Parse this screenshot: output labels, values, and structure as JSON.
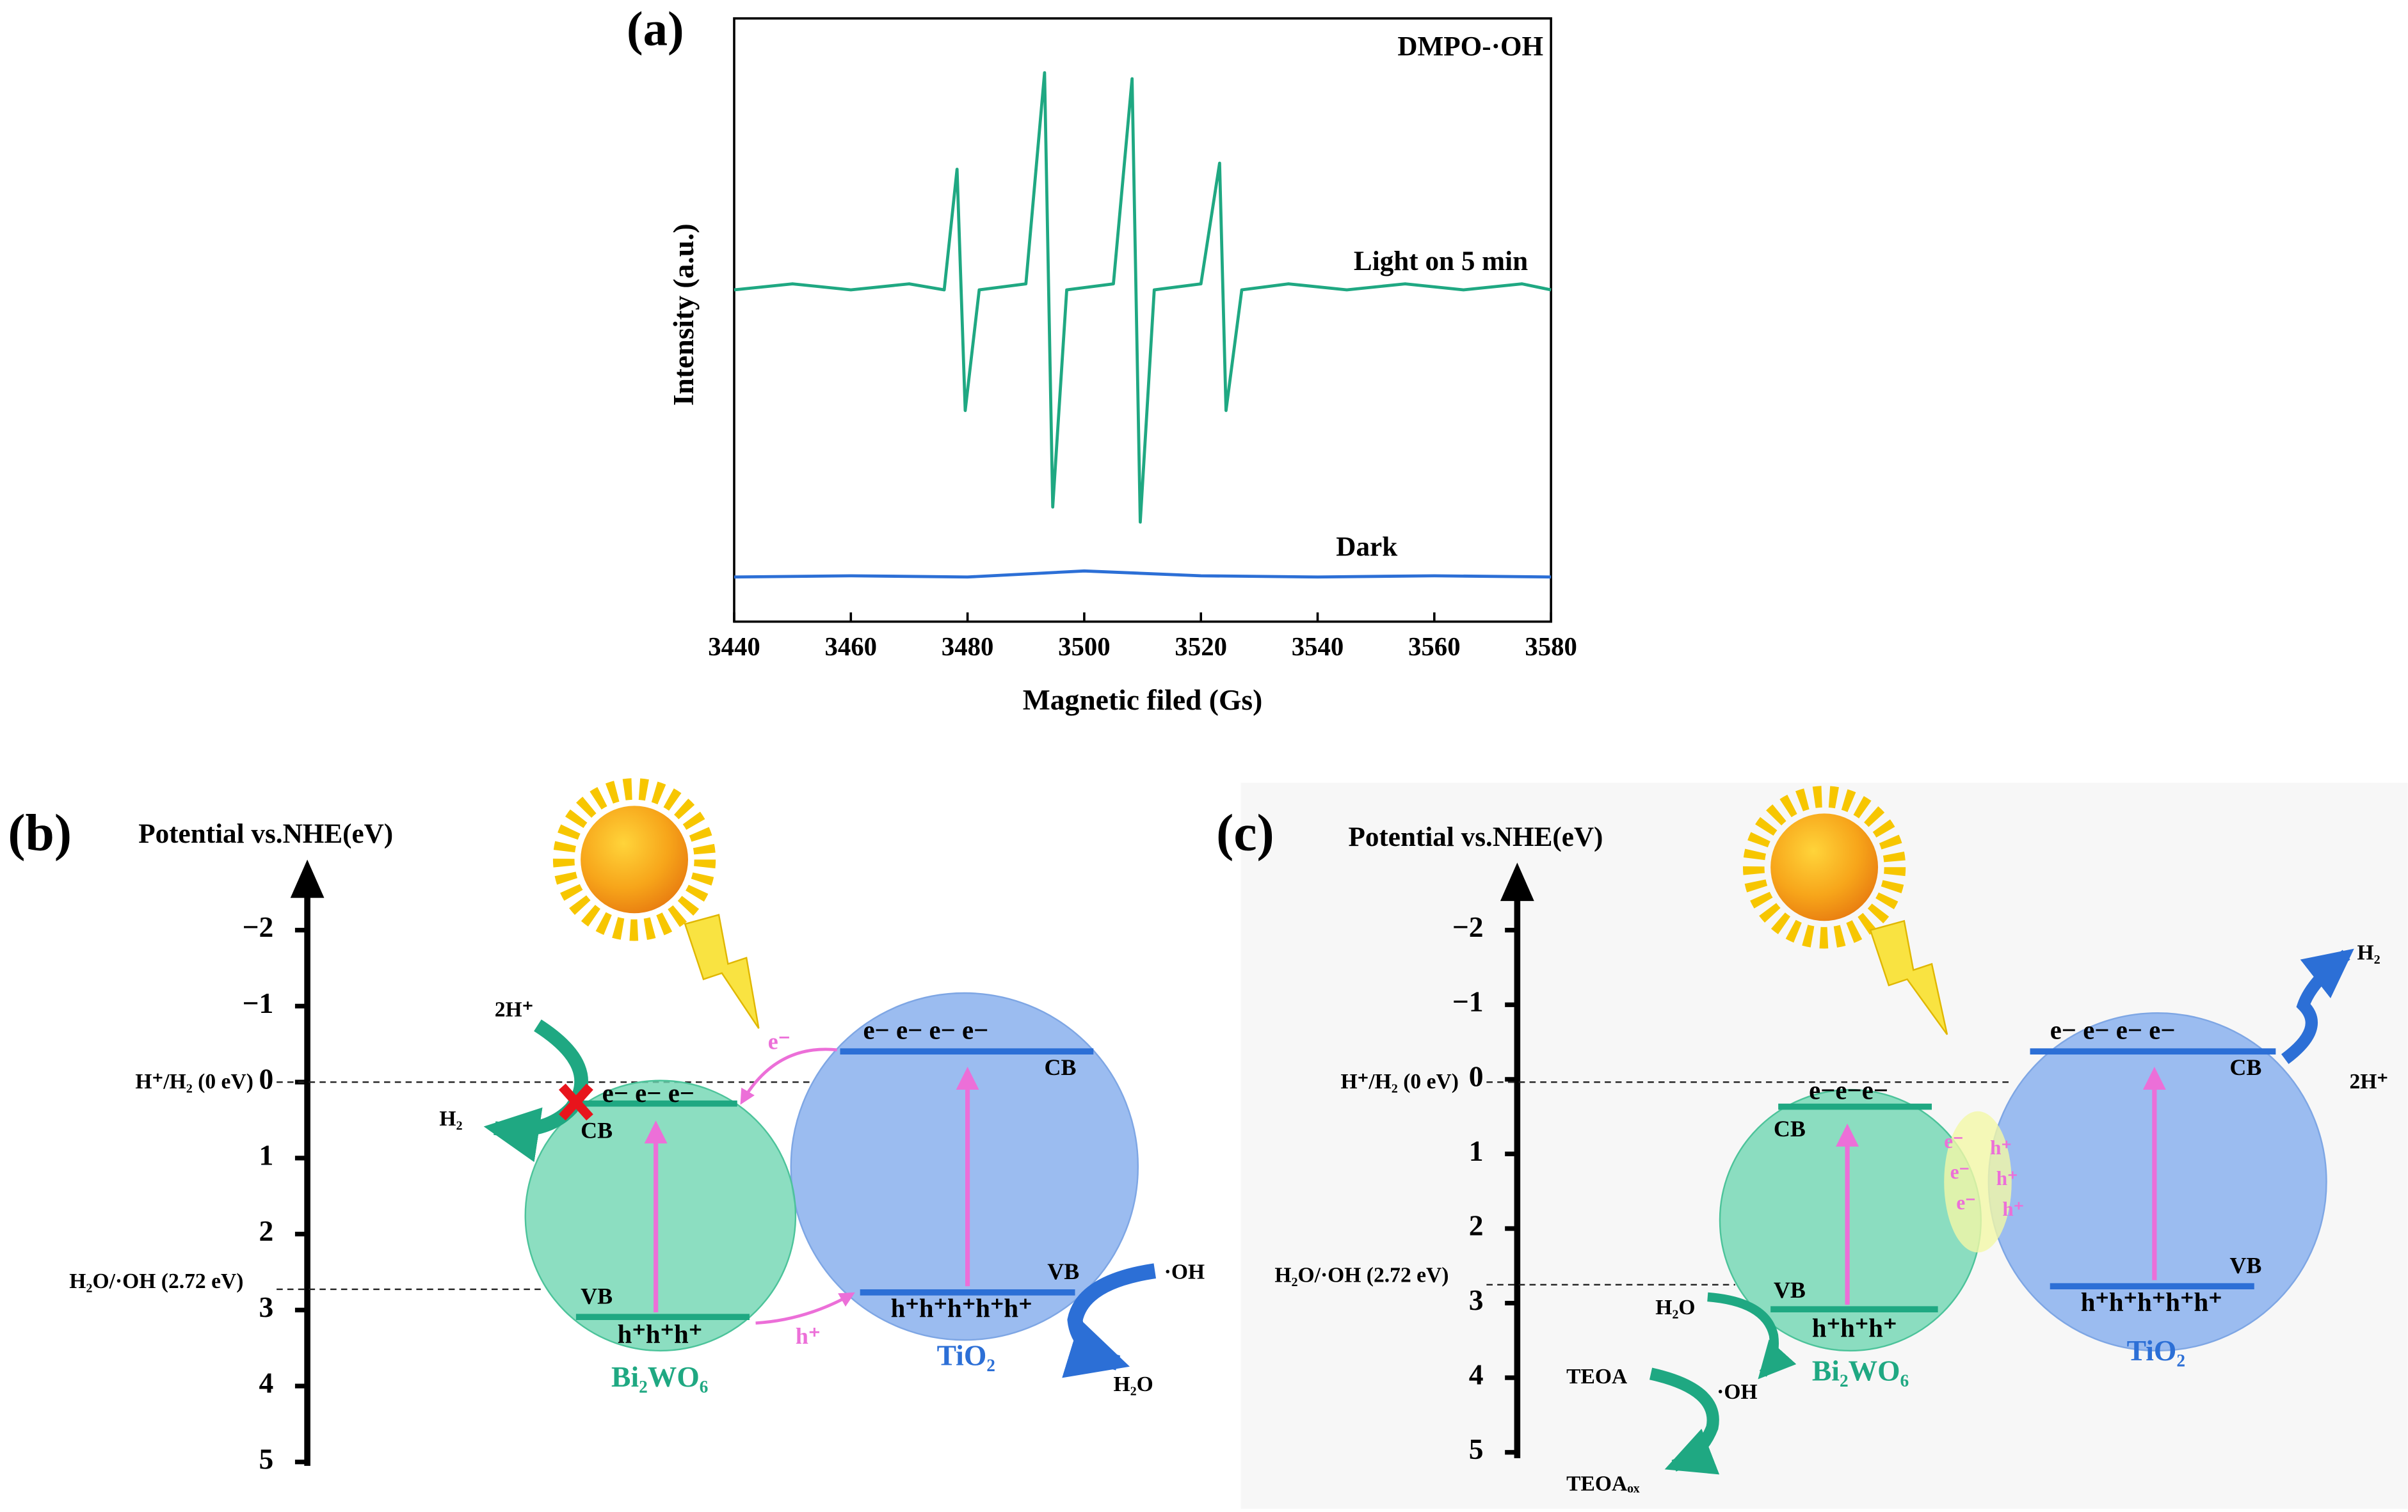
{
  "chart_data": {
    "type": "line",
    "label": "(a)",
    "xlabel": "Magnetic filed (Gs)",
    "ylabel": "Intensity (a.u.)",
    "annotations": [
      "DMPO-·OH"
    ],
    "xlim": [
      3440,
      3580
    ],
    "xticks": [
      3440,
      3460,
      3480,
      3500,
      3520,
      3540,
      3560,
      3580
    ],
    "ylim": [
      0,
      100
    ],
    "series": [
      {
        "name": "Light on 5 min",
        "color": "#1fa882",
        "x": [
          3440,
          3450,
          3460,
          3470,
          3476,
          3478.2,
          3479.6,
          3482,
          3490,
          3493.2,
          3494.6,
          3497,
          3505,
          3508.2,
          3509.6,
          3512,
          3520,
          3523.2,
          3524.3,
          3527,
          3535,
          3545,
          3555,
          3565,
          3575,
          3580
        ],
        "values": [
          55,
          56,
          55,
          56,
          55,
          75,
          35,
          55,
          56,
          91,
          19,
          55,
          56,
          90,
          16.5,
          55,
          56,
          76,
          35,
          55,
          56,
          55,
          56,
          55,
          56,
          55
        ]
      },
      {
        "name": "Dark",
        "color": "#2c6fd6",
        "x": [
          3440,
          3460,
          3480,
          3500,
          3520,
          3540,
          3560,
          3580
        ],
        "values": [
          7.4,
          7.6,
          7.4,
          8.4,
          7.6,
          7.4,
          7.6,
          7.4
        ]
      }
    ]
  },
  "panel_b": {
    "label": "(b)",
    "axis_title": "Potential vs.NHE(eV)",
    "axis_ticks": [
      "−2",
      "−1",
      "0",
      "1",
      "2",
      "3",
      "4",
      "5"
    ],
    "h2_level": "H⁺/H₂ (0 eV)",
    "oh_level": "H₂O/·OH (2.72 eV)",
    "bi2wo6": {
      "name": "Bi₂WO₆",
      "cb": "CB",
      "vb": "VB",
      "electrons": "e− e− e−",
      "holes": "h⁺h⁺h⁺"
    },
    "tio2": {
      "name": "TiO₂",
      "cb": "CB",
      "vb": "VB",
      "electrons": "e−  e−  e−  e−",
      "holes": "h⁺h⁺h⁺h⁺h⁺"
    },
    "reactant_h": "2H⁺",
    "product_h2": "H₂",
    "electron_transfer": "e⁻",
    "hole_transfer": "h⁺",
    "reactant_h2o": "H₂O",
    "product_oh": "·OH"
  },
  "panel_c": {
    "label": "(c)",
    "axis_title": "Potential vs.NHE(eV)",
    "axis_ticks": [
      "−2",
      "−1",
      "0",
      "1",
      "2",
      "3",
      "4",
      "5"
    ],
    "h2_level": "H⁺/H₂ (0 eV)",
    "oh_level": "H₂O/·OH (2.72 eV)",
    "bi2wo6": {
      "name": "Bi₂WO₆",
      "cb": "CB",
      "vb": "VB",
      "electrons": "e−e−e−",
      "holes": "h⁺h⁺h⁺"
    },
    "tio2": {
      "name": "TiO₂",
      "cb": "CB",
      "vb": "VB",
      "electrons": "e−  e−  e−  e−",
      "holes": "h⁺h⁺h⁺h⁺h⁺"
    },
    "interface": [
      "e⁻",
      "h⁺",
      "e⁻",
      "h⁺",
      "e⁻",
      "h⁺"
    ],
    "reactant_h2o": "H₂O",
    "product_oh": "·OH",
    "reactant_teoa": "TEOA",
    "product_teoa": "TEOAₒₓ",
    "product_h2": "H₂",
    "reactant_h": "2H⁺"
  }
}
